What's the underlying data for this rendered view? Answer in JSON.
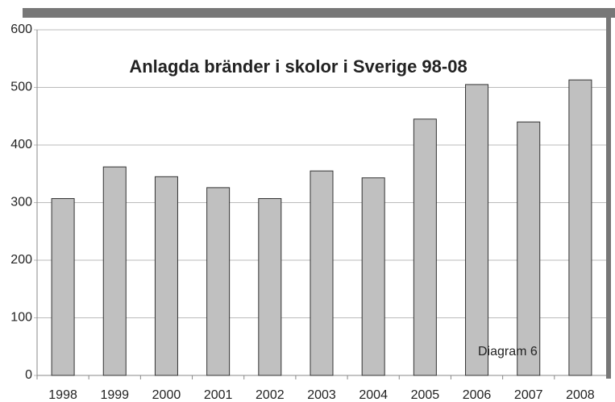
{
  "chart_data": {
    "type": "bar",
    "title": "Anlagda bränder i skolor i Sverige 98-08",
    "annotation": "Diagram 6",
    "categories": [
      "1998",
      "1999",
      "2000",
      "2001",
      "2002",
      "2003",
      "2004",
      "2005",
      "2006",
      "2007",
      "2008"
    ],
    "values": [
      307,
      362,
      345,
      326,
      307,
      355,
      343,
      445,
      505,
      440,
      513
    ],
    "color": "#c0c0c0",
    "ylim": [
      0,
      600
    ],
    "yticks": [
      0,
      100,
      200,
      300,
      400,
      500,
      600
    ],
    "grid": true
  }
}
